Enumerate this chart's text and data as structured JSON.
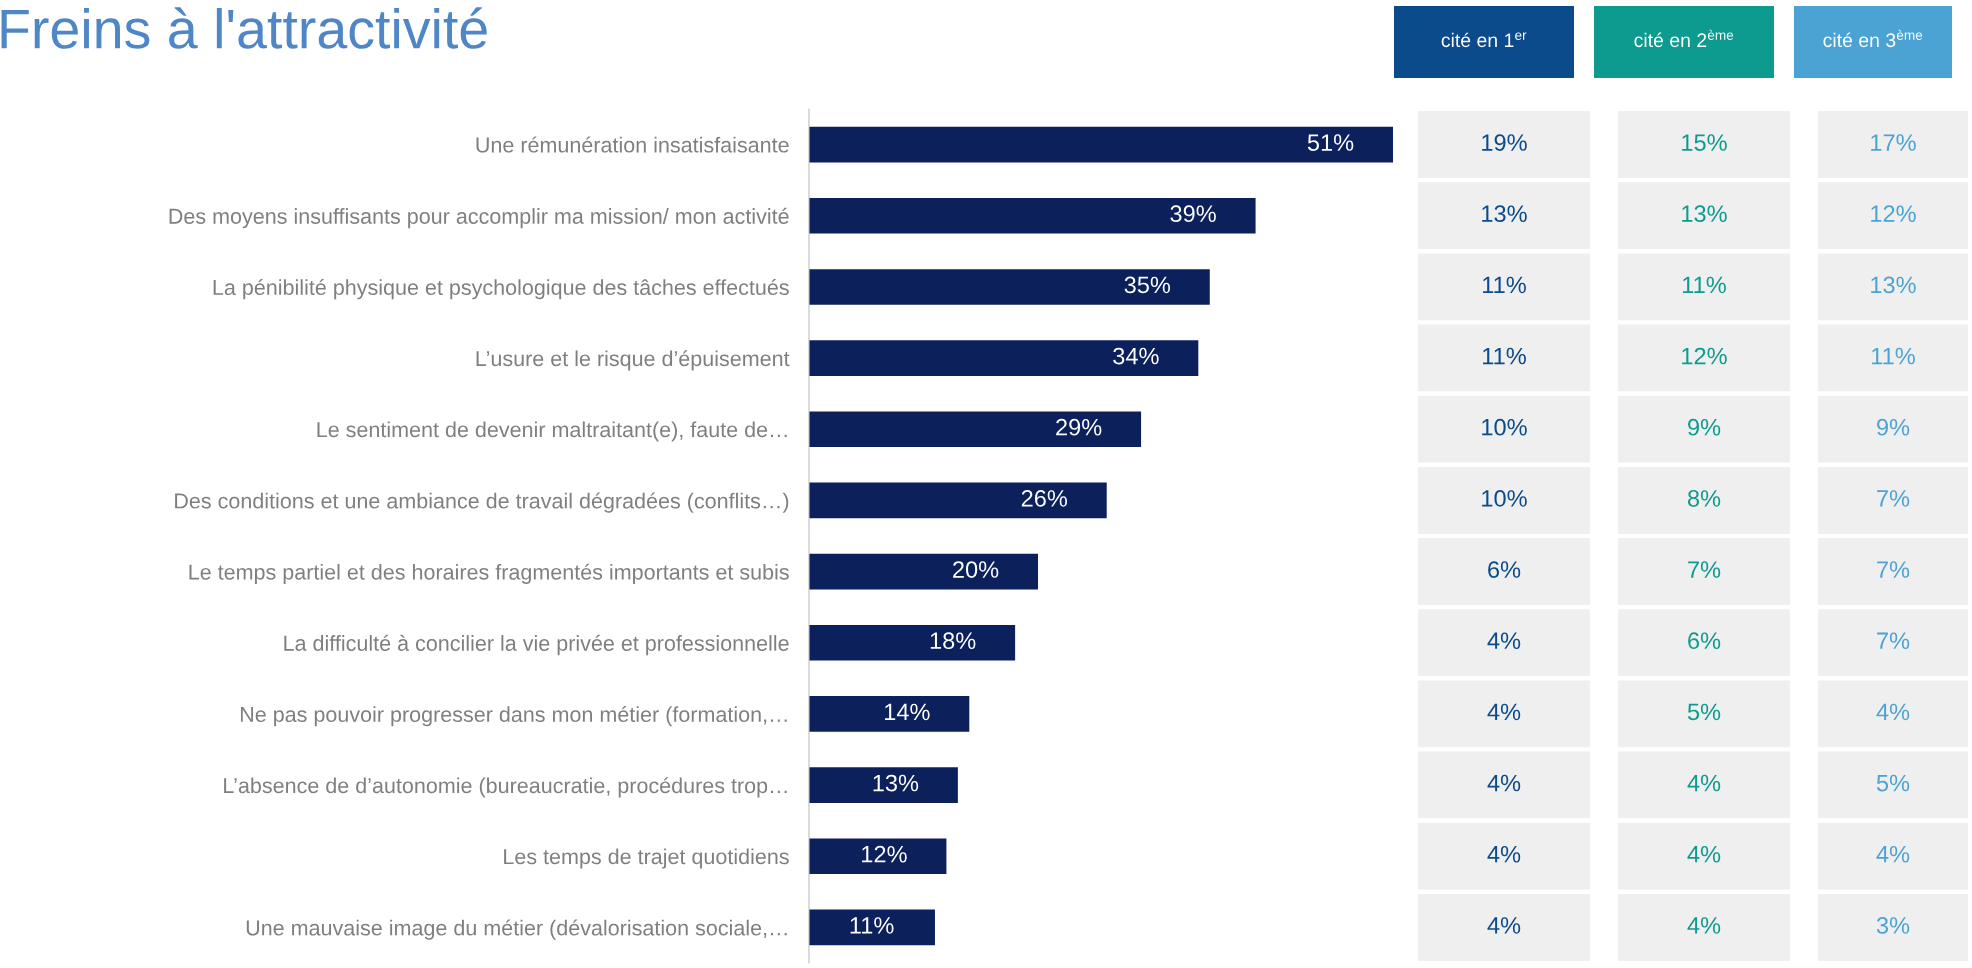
{
  "chart_data": [
    {
      "type": "bar",
      "title": "Freins à l'attractivité",
      "orientation": "horizontal",
      "tick_labels": "y",
      "categories": [
        "Une rémunération insatisfaisante",
        "Des moyens insuffisants pour accomplir ma mission/ mon activité",
        "La pénibilité physique et psychologique des tâches effectués",
        "L’usure et le risque d’épuisement",
        "Le sentiment de devenir maltraitant(e), faute de…",
        "Des conditions et une ambiance de travail dégradées (conflits…)",
        "Le temps partiel et des horaires fragmentés importants et subis",
        "La difficulté à concilier la vie privée et professionnelle",
        "Ne pas pouvoir progresser dans mon métier (formation,…",
        "L’absence de d’autonomie (bureaucratie, procédures trop…",
        "Les temps de trajet quotidiens",
        "Une mauvaise image du métier (dévalorisation sociale,…"
      ],
      "values": [
        51,
        39,
        35,
        34,
        29,
        26,
        20,
        18,
        14,
        13,
        12,
        11
      ],
      "value_labels": [
        "51%",
        "39%",
        "35%",
        "34%",
        "29%",
        "26%",
        "20%",
        "18%",
        "14%",
        "13%",
        "12%",
        "11%"
      ],
      "color": "#0c215c"
    },
    {
      "type": "other",
      "title": "cité en 1$^{er}$",
      "color": "#0b4a8b",
      "annotations": [
        "19%",
        "13%",
        "11%",
        "11%",
        "10%",
        "10%",
        "6%",
        "4%",
        "4%",
        "4%",
        "4%",
        "4%"
      ]
    },
    {
      "type": "other",
      "title": "cité en 2$^{ème}$",
      "color": "#0d9a8f",
      "annotations": [
        "15%",
        "13%",
        "11%",
        "12%",
        "9%",
        "8%",
        "7%",
        "6%",
        "5%",
        "4%",
        "4%",
        "4%"
      ]
    },
    {
      "type": "other",
      "title": "cité en 3$^{ème}$",
      "color": "#4ba3d3",
      "annotations": [
        "17%",
        "12%",
        "13%",
        "11%",
        "9%",
        "7%",
        "7%",
        "7%",
        "4%",
        "5%",
        "4%",
        "3%"
      ]
    }
  ]
}
